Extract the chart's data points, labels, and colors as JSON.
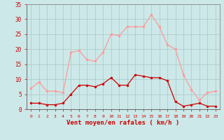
{
  "hours": [
    0,
    1,
    2,
    3,
    4,
    5,
    6,
    7,
    8,
    9,
    10,
    11,
    12,
    13,
    14,
    15,
    16,
    17,
    18,
    19,
    20,
    21,
    22,
    23
  ],
  "wind_avg": [
    2,
    2,
    1.5,
    1.5,
    2,
    5,
    8,
    8,
    7.5,
    8.5,
    10.5,
    8,
    8,
    11.5,
    11,
    10.5,
    10.5,
    9.5,
    2.5,
    1,
    1.5,
    2,
    1,
    1
  ],
  "wind_gust": [
    7,
    9,
    6,
    6,
    5.5,
    19,
    19.5,
    16.5,
    16,
    19,
    25,
    24.5,
    27.5,
    27.5,
    27.5,
    31.5,
    27.5,
    21.5,
    20,
    11.5,
    6.5,
    3,
    5.5,
    6
  ],
  "bg_color": "#cce8e8",
  "grid_color": "#aac8c8",
  "line_color_avg": "#cc0000",
  "line_color_gust": "#ff9999",
  "xlabel": "Vent moyen/en rafales ( km/h )",
  "xlabel_color": "#cc0000",
  "tick_color": "#cc0000",
  "spine_color": "#888888",
  "ylim": [
    0,
    35
  ],
  "yticks": [
    0,
    5,
    10,
    15,
    20,
    25,
    30,
    35
  ],
  "xlim": [
    -0.5,
    23.5
  ]
}
